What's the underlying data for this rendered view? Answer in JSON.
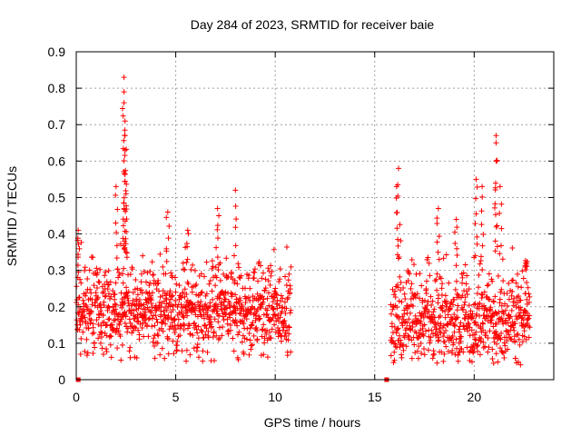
{
  "chart_data": {
    "type": "scatter",
    "title": "Day 284 of 2023, SRMTID for receiver baie",
    "xlabel": "GPS time / hours",
    "ylabel": "SRMTID / TECUs",
    "xlim": [
      0,
      24
    ],
    "ylim": [
      0,
      0.9
    ],
    "xticks": [
      0,
      5,
      10,
      15,
      20
    ],
    "xtick_labels": [
      "0",
      "5",
      "10",
      "15",
      "20"
    ],
    "yticks": [
      0,
      0.1,
      0.2,
      0.3,
      0.4,
      0.5,
      0.6,
      0.7,
      0.8,
      0.9
    ],
    "ytick_labels": [
      "0",
      "0.1",
      "0.2",
      "0.3",
      "0.4",
      "0.5",
      "0.6",
      "0.7",
      "0.8",
      "0.9"
    ],
    "grid": true,
    "marker": "+",
    "color": "#ff0000",
    "series": [
      {
        "name": "SRMTID",
        "segments": [
          {
            "x_start": 0.0,
            "x_end": 10.8,
            "baseline": [
              0.15,
              0.3
            ],
            "typical_range": [
              0.05,
              0.35
            ]
          },
          {
            "x_start": 15.8,
            "x_end": 22.8,
            "baseline": [
              0.12,
              0.3
            ],
            "typical_range": [
              0.04,
              0.35
            ]
          }
        ],
        "peaks": [
          {
            "x": 0.1,
            "y": 0.41
          },
          {
            "x": 2.4,
            "y": 0.83
          },
          {
            "x": 2.4,
            "y": 0.79
          },
          {
            "x": 2.4,
            "y": 0.76
          },
          {
            "x": 2.45,
            "y": 0.71
          },
          {
            "x": 2.45,
            "y": 0.67
          },
          {
            "x": 2.45,
            "y": 0.63
          },
          {
            "x": 2.0,
            "y": 0.53
          },
          {
            "x": 2.5,
            "y": 0.51
          },
          {
            "x": 4.6,
            "y": 0.46
          },
          {
            "x": 5.6,
            "y": 0.41
          },
          {
            "x": 7.1,
            "y": 0.47
          },
          {
            "x": 8.0,
            "y": 0.52
          },
          {
            "x": 16.2,
            "y": 0.58
          },
          {
            "x": 16.1,
            "y": 0.53
          },
          {
            "x": 18.2,
            "y": 0.47
          },
          {
            "x": 19.1,
            "y": 0.44
          },
          {
            "x": 20.1,
            "y": 0.55
          },
          {
            "x": 20.4,
            "y": 0.53
          },
          {
            "x": 21.1,
            "y": 0.67
          },
          {
            "x": 21.1,
            "y": 0.65
          },
          {
            "x": 21.1,
            "y": 0.6
          },
          {
            "x": 21.3,
            "y": 0.53
          },
          {
            "x": 22.6,
            "y": 0.32
          }
        ],
        "zero_markers": [
          {
            "x": 0.1,
            "y": 0.0
          },
          {
            "x": 15.6,
            "y": 0.0
          }
        ]
      }
    ]
  }
}
